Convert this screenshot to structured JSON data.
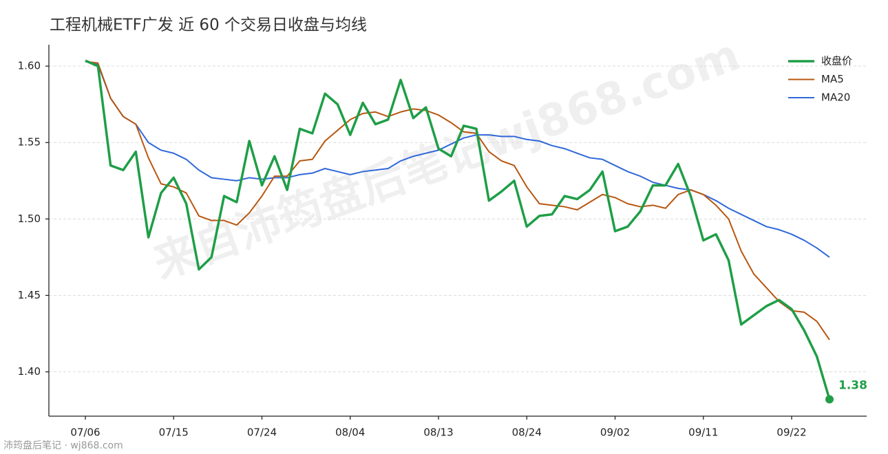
{
  "chart_data": {
    "type": "line",
    "title": "工程机械ETF广发 近 60 个交易日收盘与均线",
    "watermark": "来自沛筠盘后笔记wj868.com",
    "footer": "沛筠盘后笔记 · wj868.com",
    "categories": [
      "07/06",
      null,
      null,
      null,
      null,
      null,
      null,
      "07/15",
      null,
      null,
      null,
      null,
      null,
      null,
      "07/24",
      null,
      null,
      null,
      null,
      null,
      null,
      "08/04",
      null,
      null,
      null,
      null,
      null,
      null,
      "08/13",
      null,
      null,
      null,
      null,
      null,
      null,
      "08/24",
      null,
      null,
      null,
      null,
      null,
      null,
      "09/02",
      null,
      null,
      null,
      null,
      null,
      null,
      "09/11",
      null,
      null,
      null,
      null,
      null,
      null,
      "09/22",
      null,
      null,
      null
    ],
    "series": [
      {
        "name": "收盘价",
        "color": "#1f9e47",
        "values": [
          1.6036,
          1.6,
          1.535,
          1.532,
          1.544,
          1.488,
          1.517,
          1.527,
          1.51,
          1.467,
          1.475,
          1.515,
          1.511,
          1.551,
          1.522,
          1.541,
          1.519,
          1.559,
          1.556,
          1.582,
          1.575,
          1.555,
          1.576,
          1.562,
          1.565,
          1.591,
          1.566,
          1.573,
          1.546,
          1.541,
          1.561,
          1.559,
          1.512,
          1.518,
          1.525,
          1.495,
          1.502,
          1.503,
          1.515,
          1.513,
          1.519,
          1.531,
          1.492,
          1.495,
          1.505,
          1.522,
          1.522,
          1.536,
          1.515,
          1.486,
          1.49,
          1.473,
          1.431,
          1.437,
          1.443,
          1.447,
          1.441,
          1.427,
          1.41,
          1.382
        ],
        "value_labels": [
          null,
          null,
          null,
          null,
          null,
          null,
          null,
          null,
          null,
          null,
          null,
          null,
          null,
          null,
          null,
          null,
          null,
          null,
          null,
          null,
          null,
          null,
          null,
          null,
          null,
          null,
          null,
          null,
          null,
          null,
          null,
          null,
          null,
          null,
          null,
          null,
          null,
          null,
          null,
          null,
          null,
          null,
          null,
          null,
          null,
          null,
          null,
          null,
          null,
          null,
          null,
          null,
          null,
          null,
          null,
          null,
          null,
          null,
          null,
          "1.38"
        ]
      },
      {
        "name": "MA5",
        "color": "#b8560f",
        "values": [
          1.603,
          1.602,
          1.579,
          1.567,
          1.562,
          1.54,
          1.523,
          1.521,
          1.517,
          1.502,
          1.499,
          1.499,
          1.496,
          1.504,
          1.515,
          1.528,
          1.528,
          1.538,
          1.539,
          1.551,
          1.558,
          1.565,
          1.569,
          1.57,
          1.567,
          1.57,
          1.572,
          1.571,
          1.568,
          1.563,
          1.557,
          1.556,
          1.544,
          1.538,
          1.535,
          1.521,
          1.51,
          1.509,
          1.508,
          1.506,
          1.511,
          1.516,
          1.514,
          1.51,
          1.508,
          1.509,
          1.507,
          1.516,
          1.519,
          1.516,
          1.509,
          1.5,
          1.479,
          1.464,
          1.455,
          1.446,
          1.44,
          1.439,
          1.433,
          1.421
        ]
      },
      {
        "name": "MA20",
        "color": "#2f68d8",
        "values": [
          1.603,
          1.601,
          1.579,
          1.567,
          1.562,
          1.55,
          1.545,
          1.543,
          1.539,
          1.532,
          1.527,
          1.526,
          1.525,
          1.527,
          1.526,
          1.527,
          1.527,
          1.529,
          1.53,
          1.533,
          1.531,
          1.529,
          1.531,
          1.532,
          1.533,
          1.538,
          1.541,
          1.543,
          1.545,
          1.549,
          1.553,
          1.555,
          1.555,
          1.554,
          1.554,
          1.552,
          1.551,
          1.548,
          1.546,
          1.543,
          1.54,
          1.539,
          1.535,
          1.531,
          1.528,
          1.524,
          1.522,
          1.52,
          1.519,
          1.516,
          1.512,
          1.507,
          1.503,
          1.499,
          1.495,
          1.493,
          1.49,
          1.486,
          1.481,
          1.475
        ]
      }
    ],
    "ylim": [
      1.371,
      1.614
    ],
    "yticks": [
      {
        "value": 1.4,
        "label": "1.40"
      },
      1.45,
      {
        "value": 1.5,
        "label": "1.50"
      },
      1.55,
      {
        "value": 1.6,
        "label": "1.60"
      }
    ],
    "grid": true,
    "legend": "upper right"
  }
}
